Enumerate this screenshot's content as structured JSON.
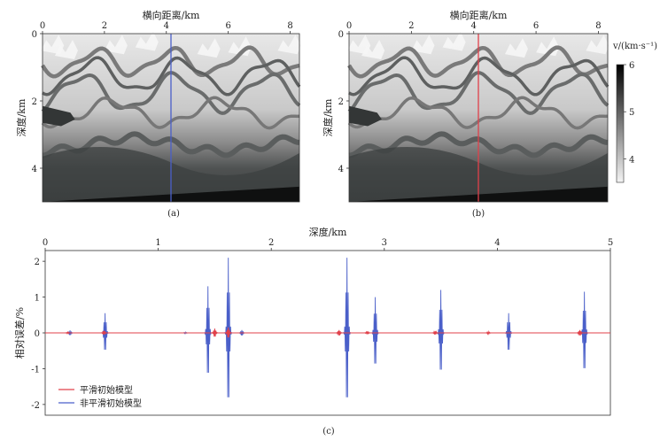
{
  "figure": {
    "panel_labels": [
      "(a)",
      "(b)",
      "(c)"
    ]
  },
  "chart_data": [
    {
      "type": "heatmap",
      "panel": "(a)",
      "title": "",
      "xlabel": "横向距离/km",
      "ylabel": "深度/km",
      "xlim": [
        0,
        8.3
      ],
      "ylim": [
        0,
        5
      ],
      "xticks": [
        0,
        2,
        4,
        6,
        8
      ],
      "yticks": [
        0,
        2,
        4
      ],
      "well_line": {
        "x": 4.15,
        "color": "#4a5fc9"
      }
    },
    {
      "type": "heatmap",
      "panel": "(b)",
      "title": "",
      "xlabel": "横向距离/km",
      "ylabel": "深度/km",
      "xlim": [
        0,
        8.3
      ],
      "ylim": [
        0,
        5
      ],
      "xticks": [
        0,
        2,
        4,
        6,
        8
      ],
      "yticks": [
        0,
        2,
        4
      ],
      "well_line": {
        "x": 4.15,
        "color": "#e0404a"
      },
      "colorbar": {
        "label": "v/(km·s⁻¹)",
        "range": [
          3.5,
          6
        ],
        "ticks": [
          4,
          5,
          6
        ]
      }
    },
    {
      "type": "line",
      "panel": "(c)",
      "title": "",
      "xlabel": "深度/km",
      "ylabel": "相对误差/%",
      "xlim": [
        0,
        5
      ],
      "ylim": [
        -2.3,
        2.3
      ],
      "xticks": [
        0,
        1,
        2,
        3,
        4,
        5
      ],
      "yticks": [
        -2,
        -1,
        0,
        1,
        2
      ],
      "legend": "bottom-left",
      "series": [
        {
          "name": "平滑初始模型",
          "color": "#e0404a",
          "bursts": [
            {
              "x": 0.2,
              "a": 0.02
            },
            {
              "x": 0.52,
              "a": 0.05
            },
            {
              "x": 1.5,
              "a": 0.12
            },
            {
              "x": 1.62,
              "a": 0.15
            },
            {
              "x": 2.6,
              "a": 0.08
            },
            {
              "x": 2.85,
              "a": 0.04
            },
            {
              "x": 3.45,
              "a": 0.05
            },
            {
              "x": 3.92,
              "a": 0.03
            },
            {
              "x": 4.73,
              "a": 0.08
            }
          ]
        },
        {
          "name": "非平滑初始模型",
          "color": "#4a5fc9",
          "bursts": [
            {
              "x": 0.22,
              "a": 0.07
            },
            {
              "x": 0.53,
              "a": 0.55
            },
            {
              "x": 1.24,
              "a": 0.02
            },
            {
              "x": 1.44,
              "a": 1.3
            },
            {
              "x": 1.62,
              "a": 2.1
            },
            {
              "x": 1.74,
              "a": 0.08
            },
            {
              "x": 2.67,
              "a": 2.1
            },
            {
              "x": 2.92,
              "a": 1.0
            },
            {
              "x": 3.5,
              "a": 1.2
            },
            {
              "x": 4.1,
              "a": 0.55
            },
            {
              "x": 4.77,
              "a": 1.15
            }
          ]
        }
      ]
    }
  ]
}
